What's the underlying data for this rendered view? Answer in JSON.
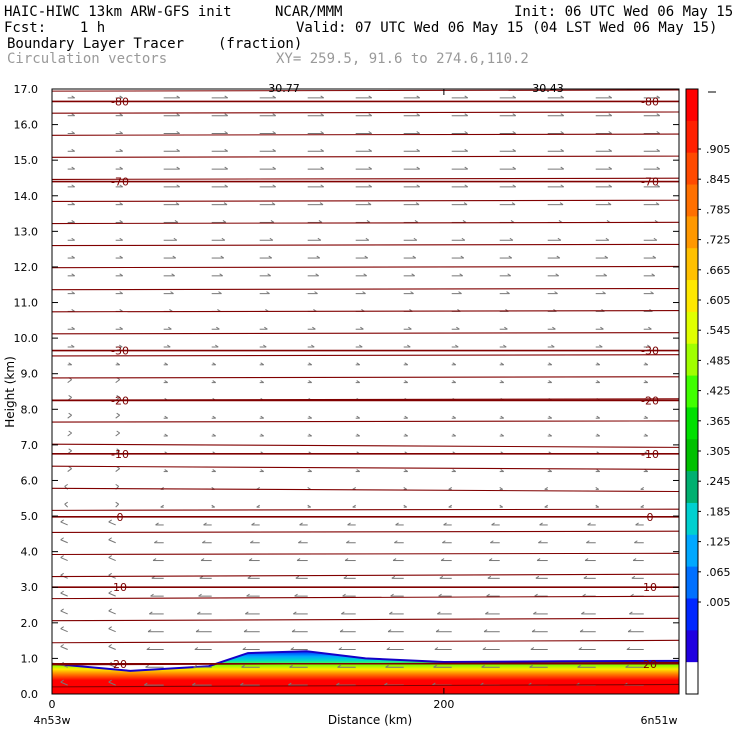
{
  "header": {
    "model": "HAIC-HIWC 13km ARW-GFS init",
    "org": "NCAR/MMM",
    "init": "Init: 06 UTC Wed 06 May 15",
    "fcst": "Fcst:    1 h",
    "valid": "Valid: 07 UTC Wed 06 May 15 (04 LST Wed 06 May 15)",
    "field": "Boundary Layer Tracer",
    "field_units": "(fraction)",
    "vectors": "Circulation vectors",
    "xy": "XY= 259.5, 91.6 to 274.6,110.2"
  },
  "chart_data": {
    "type": "heatmap",
    "xlabel": "Distance (km)",
    "ylabel": "Height (km)",
    "x_ticks": [
      "0",
      "200"
    ],
    "x_endpoints": [
      "4n53w",
      "6n51w"
    ],
    "y_ticks": [
      "0.0",
      "1.0",
      "2.0",
      "3.0",
      "4.0",
      "5.0",
      "6.0",
      "7.0",
      "8.0",
      "9.0",
      "10.0",
      "11.0",
      "12.0",
      "13.0",
      "14.0",
      "15.0",
      "16.0",
      "17.0"
    ],
    "xlim": [
      0,
      320
    ],
    "ylim": [
      0,
      17
    ],
    "colorbar": {
      "labels": [
        ".905",
        ".845",
        ".785",
        ".725",
        ".665",
        ".605",
        ".545",
        ".485",
        ".425",
        ".365",
        ".305",
        ".245",
        ".185",
        ".125",
        ".065",
        ".005"
      ],
      "colors": [
        "#ff0000",
        "#ff2000",
        "#ff4a00",
        "#ff7000",
        "#ff9800",
        "#ffc000",
        "#ffe800",
        "#e0ff00",
        "#a0ff00",
        "#40ff00",
        "#00e000",
        "#00c000",
        "#00b070",
        "#00d0d0",
        "#00a8ff",
        "#0070ff",
        "#0028ff",
        "#2000e0",
        "#ffffff"
      ]
    },
    "temperature_contours": [
      {
        "label": "-80",
        "height": 16.65
      },
      {
        "label": "-70",
        "height": 14.4
      },
      {
        "label": "-30",
        "height": 9.65
      },
      {
        "label": "-20",
        "height": 8.25
      },
      {
        "label": "-10",
        "height": 6.75
      },
      {
        "label": "0",
        "height": 4.98
      },
      {
        "label": "10",
        "height": 3.0
      },
      {
        "label": "20",
        "height": 0.85
      }
    ],
    "boundary_layer_top_km": [
      [
        0,
        0.85
      ],
      [
        40,
        0.65
      ],
      [
        80,
        0.78
      ],
      [
        100,
        1.15
      ],
      [
        130,
        1.2
      ],
      [
        160,
        1.0
      ],
      [
        200,
        0.9
      ],
      [
        260,
        0.92
      ],
      [
        320,
        0.93
      ]
    ],
    "top_labels": [
      "30.77",
      "30.43"
    ]
  }
}
